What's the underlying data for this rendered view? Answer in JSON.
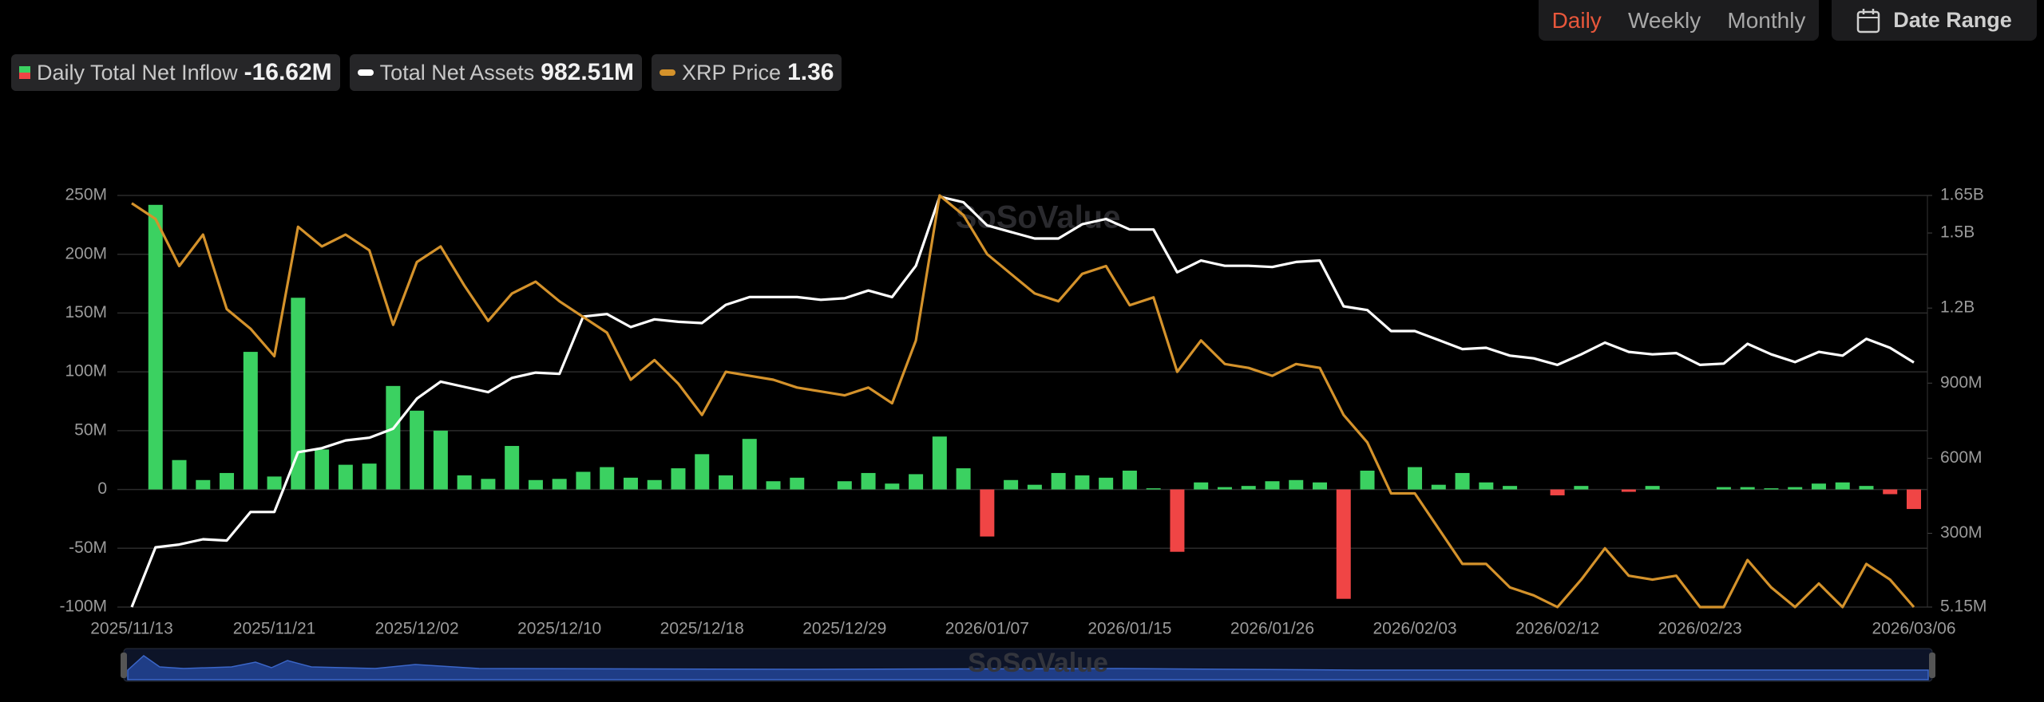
{
  "toolbar": {
    "periods": [
      "Daily",
      "Weekly",
      "Monthly"
    ],
    "active": "Daily",
    "date_range": "Date Range"
  },
  "chart_data": {
    "type": "combo",
    "watermark": "SoSoValue",
    "categories": [
      "2025/11/13",
      null,
      null,
      null,
      null,
      null,
      "2025/11/21",
      null,
      null,
      null,
      null,
      null,
      "2025/12/02",
      null,
      null,
      null,
      null,
      null,
      "2025/12/10",
      null,
      null,
      null,
      null,
      null,
      "2025/12/18",
      null,
      null,
      null,
      null,
      null,
      "2025/12/29",
      null,
      null,
      null,
      null,
      null,
      "2026/01/07",
      null,
      null,
      null,
      null,
      null,
      "2026/01/15",
      null,
      null,
      null,
      null,
      null,
      "2026/01/26",
      null,
      null,
      null,
      null,
      null,
      "2026/02/03",
      null,
      null,
      null,
      null,
      null,
      "2026/02/12",
      null,
      null,
      null,
      null,
      null,
      "2026/02/23",
      null,
      null,
      null,
      null,
      null,
      null,
      null,
      null,
      "2026/03/06"
    ],
    "ylim": [
      -100,
      250
    ],
    "yticks": [
      {
        "value": -100,
        "label": "-100M"
      },
      {
        "value": -50,
        "label": "-50M"
      },
      {
        "value": 0,
        "label": "0"
      },
      {
        "value": 50,
        "label": "50M"
      },
      {
        "value": 100,
        "label": "100M"
      },
      {
        "value": 150,
        "label": "150M"
      },
      {
        "value": 200,
        "label": "200M"
      },
      {
        "value": 250,
        "label": "250M"
      }
    ],
    "y2lim": [
      5.15,
      1650
    ],
    "y2ticks": [
      {
        "value": 5.15,
        "label": "5.15M"
      },
      {
        "value": 300,
        "label": "300M"
      },
      {
        "value": 600,
        "label": "600M"
      },
      {
        "value": 900,
        "label": "900M"
      },
      {
        "value": 1200,
        "label": "1.2B"
      },
      {
        "value": 1500,
        "label": "1.5B"
      },
      {
        "value": 1650,
        "label": "1.65B"
      }
    ],
    "y3lim": [
      1.36,
      2.41
    ],
    "grid": true,
    "series": [
      {
        "name": "Daily Total Net Inflow",
        "current_label": "-16.62M",
        "type": "bar",
        "color": "#3bd161",
        "negative_color": "#f04545",
        "values": [
          null,
          242,
          25,
          8,
          14,
          117,
          11,
          163,
          34,
          21,
          22,
          88,
          67,
          50,
          12,
          9,
          37,
          8,
          9,
          15,
          19,
          10,
          8,
          18,
          30,
          12,
          43,
          7,
          10,
          null,
          7,
          14,
          5,
          13,
          45,
          18,
          -40,
          8,
          4,
          14,
          12,
          10,
          16,
          1,
          -53,
          6,
          2,
          3,
          7,
          8,
          6,
          -93,
          16,
          null,
          19,
          4,
          14,
          6,
          3,
          null,
          -5,
          3,
          null,
          -2,
          3,
          null,
          null,
          2,
          2,
          1,
          2,
          5,
          6,
          3,
          -4,
          -16.62
        ]
      },
      {
        "name": "Total Net Assets",
        "current_label": "982.51M",
        "type": "line",
        "axis": "y2",
        "color": "#ffffff",
        "values": [
          5.15,
          244,
          255,
          276,
          271,
          385,
          385,
          624,
          640,
          671,
          682,
          718,
          838,
          906,
          885,
          864,
          921,
          942,
          937,
          1166,
          1176,
          1124,
          1155,
          1145,
          1140,
          1213,
          1244,
          1244,
          1244,
          1233,
          1239,
          1270,
          1244,
          1369,
          1645,
          1623,
          1530,
          1504,
          1478,
          1478,
          1535,
          1556,
          1514,
          1514,
          1343,
          1390,
          1369,
          1369,
          1364,
          1384,
          1390,
          1207,
          1192,
          1108,
          1108,
          1072,
          1036,
          1041,
          1010,
          999,
          973,
          1015,
          1062,
          1025,
          1015,
          1020,
          973,
          978,
          1057,
          1015,
          984,
          1025,
          1010,
          1077,
          1041,
          982.51
        ]
      },
      {
        "name": "XRP Price",
        "current_label": "1.36",
        "type": "line",
        "axis": "y3",
        "color": "#d4922b",
        "values": [
          2.39,
          2.35,
          2.23,
          2.31,
          2.12,
          2.07,
          2.0,
          2.33,
          2.28,
          2.31,
          2.27,
          2.08,
          2.24,
          2.28,
          2.18,
          2.09,
          2.16,
          2.19,
          2.14,
          2.1,
          2.06,
          1.94,
          1.99,
          1.93,
          1.85,
          1.96,
          1.95,
          1.94,
          1.92,
          1.91,
          1.9,
          1.92,
          1.88,
          2.04,
          2.41,
          2.36,
          2.26,
          2.21,
          2.16,
          2.14,
          2.21,
          2.23,
          2.13,
          2.15,
          1.96,
          2.04,
          1.98,
          1.97,
          1.95,
          1.98,
          1.97,
          1.85,
          1.78,
          1.65,
          1.65,
          1.56,
          1.47,
          1.47,
          1.41,
          1.39,
          1.36,
          1.43,
          1.51,
          1.44,
          1.43,
          1.44,
          1.36,
          1.36,
          1.48,
          1.41,
          1.36,
          1.42,
          1.36,
          1.47,
          1.43,
          1.36
        ]
      }
    ]
  }
}
